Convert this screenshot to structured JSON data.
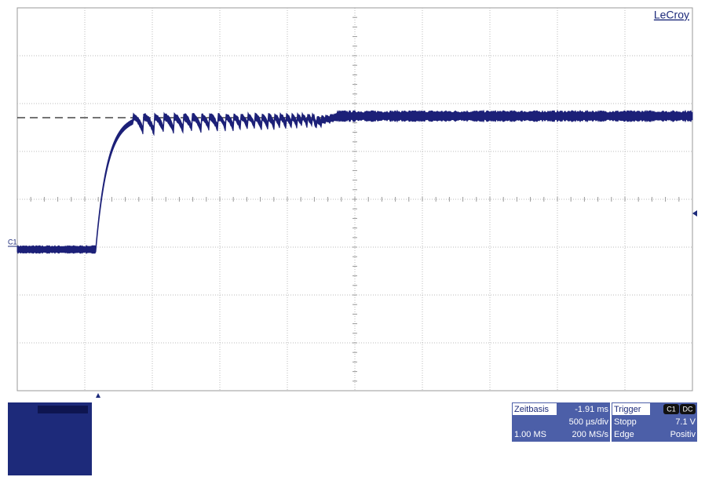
{
  "header": {
    "brand": "LeCroy"
  },
  "channel": {
    "label": "C1"
  },
  "timebase": {
    "title": "Zeitbasis",
    "offset": "-1.91 ms",
    "scale": "500 µs/div",
    "points": "1.00 MS",
    "rate": "200 MS/s"
  },
  "trigger": {
    "title": "Trigger",
    "channel": "C1",
    "coupling": "DC",
    "mode": "Stopp",
    "level": "7.1 V",
    "type": "Edge",
    "slope": "Positiv"
  }
}
